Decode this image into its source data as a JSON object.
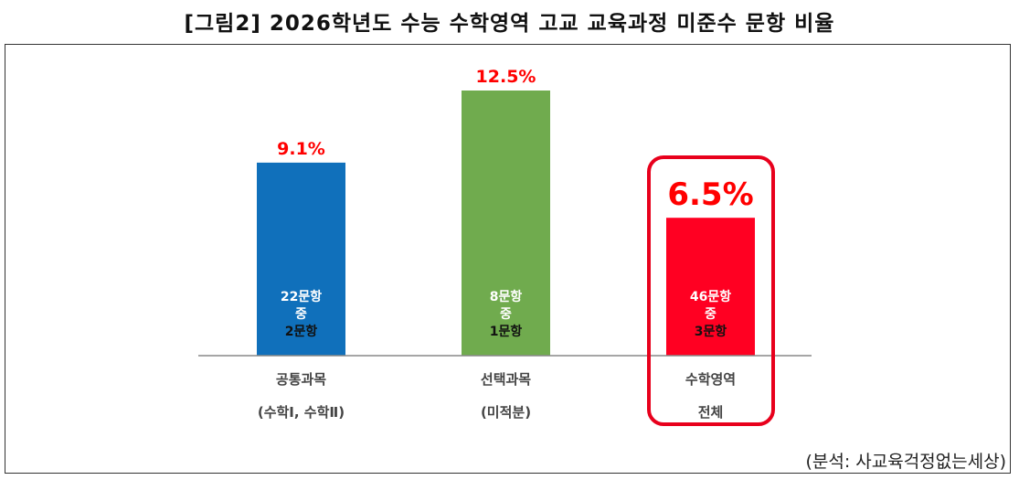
{
  "title": "[그림2] 2026학년도 수능 수학영역 고교 교육과정 미준수 문항 비율",
  "source": "(분석: 사교육걱정없는세상)",
  "chart_data": {
    "type": "bar",
    "title": "[그림2] 2026학년도 수능 수학영역 고교 교육과정 미준수 문항 비율",
    "categories": [
      [
        "공통과목",
        "(수학Ⅰ, 수학Ⅱ)"
      ],
      [
        "선택과목",
        "(미적분)"
      ],
      [
        "수학영역",
        "전체"
      ]
    ],
    "values": [
      9.1,
      12.5,
      6.5
    ],
    "value_labels": [
      "9.1%",
      "12.5%",
      "6.5%"
    ],
    "inner_labels": [
      [
        "22문항",
        "중",
        "2문항"
      ],
      [
        "8문항",
        "중",
        "1문항"
      ],
      [
        "46문항",
        "중",
        "3문항"
      ]
    ],
    "colors": [
      "#1070bb",
      "#70ab4e",
      "#ff0022"
    ],
    "highlight_index": 2,
    "ylim": [
      0,
      12.5
    ],
    "grid": false,
    "xlabel": "",
    "ylabel": ""
  }
}
